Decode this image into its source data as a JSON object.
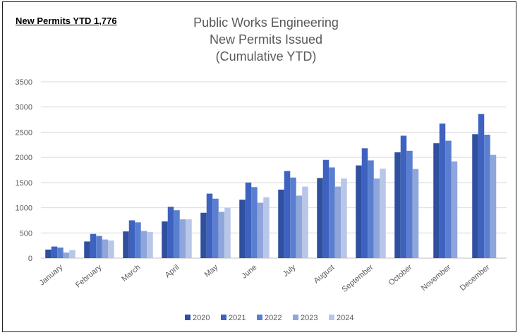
{
  "badge": "New Permits YTD 1,776",
  "chart_data": {
    "type": "bar",
    "title": [
      "Public Works Engineering",
      "New Permits Issued",
      "(Cumulative YTD)"
    ],
    "xlabel": "",
    "ylabel": "",
    "ylim": [
      0,
      3500
    ],
    "yticks": [
      0,
      500,
      1000,
      1500,
      2000,
      2500,
      3000,
      3500
    ],
    "grid": true,
    "legend_position": "bottom",
    "categories": [
      "January",
      "February",
      "March",
      "April",
      "May",
      "June",
      "July",
      "August",
      "September",
      "October",
      "November",
      "December"
    ],
    "series": [
      {
        "name": "2020",
        "color": "#2f4f9f",
        "values": [
          170,
          330,
          530,
          730,
          900,
          1160,
          1360,
          1590,
          1840,
          2100,
          2280,
          2460
        ]
      },
      {
        "name": "2021",
        "color": "#3d62c0",
        "values": [
          230,
          480,
          750,
          1020,
          1280,
          1500,
          1730,
          1950,
          2180,
          2430,
          2670,
          2860
        ]
      },
      {
        "name": "2022",
        "color": "#5b7fd0",
        "values": [
          210,
          440,
          710,
          950,
          1180,
          1410,
          1600,
          1800,
          1940,
          2130,
          2330,
          2450
        ]
      },
      {
        "name": "2023",
        "color": "#8fa6dc",
        "values": [
          110,
          370,
          540,
          770,
          920,
          1100,
          1240,
          1420,
          1580,
          1770,
          1920,
          2050
        ]
      },
      {
        "name": "2024",
        "color": "#b8c6e8",
        "values": [
          160,
          350,
          520,
          770,
          1000,
          1210,
          1420,
          1580,
          1776,
          null,
          null,
          null
        ]
      }
    ]
  }
}
